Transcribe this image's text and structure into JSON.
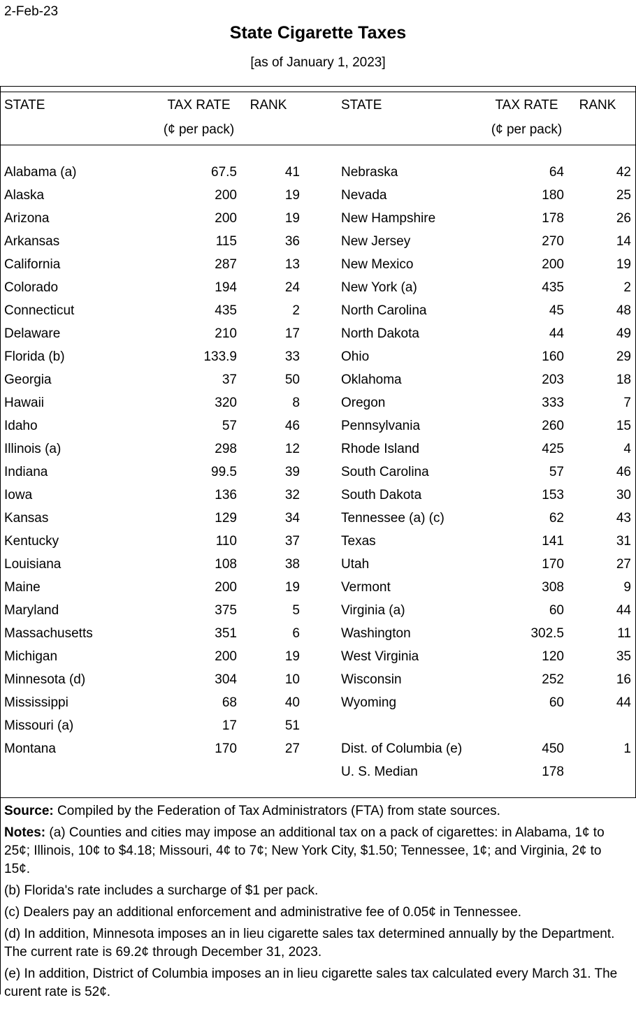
{
  "document": {
    "date": "2-Feb-23",
    "title": "State Cigarette Taxes",
    "subtitle": "[as of January 1, 2023]"
  },
  "table": {
    "headers": {
      "state": "STATE",
      "tax_rate": "TAX RATE",
      "rank": "RANK",
      "unit": "(¢ per pack)"
    },
    "rows": [
      {
        "l_state": "Alabama (a)",
        "l_rate": "67.5",
        "l_rank": "41",
        "r_state": "Nebraska",
        "r_rate": "64",
        "r_rank": "42"
      },
      {
        "l_state": "Alaska",
        "l_rate": "200",
        "l_rank": "19",
        "r_state": "Nevada",
        "r_rate": "180",
        "r_rank": "25"
      },
      {
        "l_state": "Arizona",
        "l_rate": "200",
        "l_rank": "19",
        "r_state": "New Hampshire",
        "r_rate": "178",
        "r_rank": "26"
      },
      {
        "l_state": "Arkansas",
        "l_rate": "115",
        "l_rank": "36",
        "r_state": "New Jersey",
        "r_rate": "270",
        "r_rank": "14"
      },
      {
        "l_state": "California",
        "l_rate": "287",
        "l_rank": "13",
        "r_state": "New Mexico",
        "r_rate": "200",
        "r_rank": "19"
      },
      {
        "l_state": "Colorado",
        "l_rate": "194",
        "l_rank": "24",
        "r_state": "New York (a)",
        "r_rate": "435",
        "r_rank": "2"
      },
      {
        "l_state": "Connecticut",
        "l_rate": "435",
        "l_rank": "2",
        "r_state": "North Carolina",
        "r_rate": "45",
        "r_rank": "48"
      },
      {
        "l_state": "Delaware",
        "l_rate": "210",
        "l_rank": "17",
        "r_state": "North Dakota",
        "r_rate": "44",
        "r_rank": "49"
      },
      {
        "l_state": "Florida (b)",
        "l_rate": "133.9",
        "l_rank": "33",
        "r_state": "Ohio",
        "r_rate": "160",
        "r_rank": "29"
      },
      {
        "l_state": "Georgia",
        "l_rate": "37",
        "l_rank": "50",
        "r_state": "Oklahoma",
        "r_rate": "203",
        "r_rank": "18"
      },
      {
        "l_state": "Hawaii",
        "l_rate": "320",
        "l_rank": "8",
        "r_state": "Oregon",
        "r_rate": "333",
        "r_rank": "7"
      },
      {
        "l_state": "Idaho",
        "l_rate": "57",
        "l_rank": "46",
        "r_state": "Pennsylvania",
        "r_rate": "260",
        "r_rank": "15"
      },
      {
        "l_state": "Illinois (a)",
        "l_rate": "298",
        "l_rank": "12",
        "r_state": "Rhode Island",
        "r_rate": "425",
        "r_rank": "4"
      },
      {
        "l_state": "Indiana",
        "l_rate": "99.5",
        "l_rank": "39",
        "r_state": "South Carolina",
        "r_rate": "57",
        "r_rank": "46"
      },
      {
        "l_state": "Iowa",
        "l_rate": "136",
        "l_rank": "32",
        "r_state": "South Dakota",
        "r_rate": "153",
        "r_rank": "30"
      },
      {
        "l_state": "Kansas",
        "l_rate": "129",
        "l_rank": "34",
        "r_state": "Tennessee (a) (c)",
        "r_rate": "62",
        "r_rank": "43"
      },
      {
        "l_state": "Kentucky",
        "l_rate": "110",
        "l_rank": "37",
        "r_state": "Texas",
        "r_rate": "141",
        "r_rank": "31"
      },
      {
        "l_state": "Louisiana",
        "l_rate": "108",
        "l_rank": "38",
        "r_state": "Utah",
        "r_rate": "170",
        "r_rank": "27"
      },
      {
        "l_state": "Maine",
        "l_rate": "200",
        "l_rank": "19",
        "r_state": "Vermont",
        "r_rate": "308",
        "r_rank": "9"
      },
      {
        "l_state": "Maryland",
        "l_rate": "375",
        "l_rank": "5",
        "r_state": "Virginia (a)",
        "r_rate": "60",
        "r_rank": "44"
      },
      {
        "l_state": "Massachusetts",
        "l_rate": "351",
        "l_rank": "6",
        "r_state": "Washington",
        "r_rate": "302.5",
        "r_rank": "11"
      },
      {
        "l_state": "Michigan",
        "l_rate": "200",
        "l_rank": "19",
        "r_state": "West Virginia",
        "r_rate": "120",
        "r_rank": "35"
      },
      {
        "l_state": "Minnesota (d)",
        "l_rate": "304",
        "l_rank": "10",
        "r_state": "Wisconsin",
        "r_rate": "252",
        "r_rank": "16"
      },
      {
        "l_state": "Mississippi",
        "l_rate": "68",
        "l_rank": "40",
        "r_state": "Wyoming",
        "r_rate": "60",
        "r_rank": "44"
      },
      {
        "l_state": "Missouri (a)",
        "l_rate": "17",
        "l_rank": "51",
        "r_state": "",
        "r_rate": "",
        "r_rank": ""
      },
      {
        "l_state": "Montana",
        "l_rate": "170",
        "l_rank": "27",
        "r_state": "Dist. of Columbia (e)",
        "r_rate": "450",
        "r_rank": "1"
      },
      {
        "l_state": "",
        "l_rate": "",
        "l_rank": "",
        "r_state": "U. S. Median",
        "r_rate": "178",
        "r_rank": ""
      }
    ]
  },
  "footer": {
    "source_label": "Source:",
    "source_text": "Compiled by the Federation of Tax Administrators (FTA) from state sources.",
    "notes_label": "Notes:",
    "note_a": "(a) Counties and cities may impose an additional tax on a pack of cigarettes:  in Alabama, 1¢ to 25¢; Illinois, 10¢ to $4.18; Missouri, 4¢ to 7¢; New York City, $1.50; Tennessee, 1¢; and Virginia, 2¢ to 15¢.",
    "note_b": "(b) Florida's rate includes a surcharge of $1 per pack.",
    "note_c": "(c) Dealers pay an additional enforcement and administrative fee of 0.05¢ in Tennessee.",
    "note_d": "(d) In addition, Minnesota imposes an in lieu cigarette sales tax determined annually by the Department. The current rate is 69.2¢ through December 31, 2023.",
    "note_e": "(e) In addition, District of Columbia imposes an in lieu cigarette sales tax calculated every March 31. The curent rate is 52¢."
  }
}
